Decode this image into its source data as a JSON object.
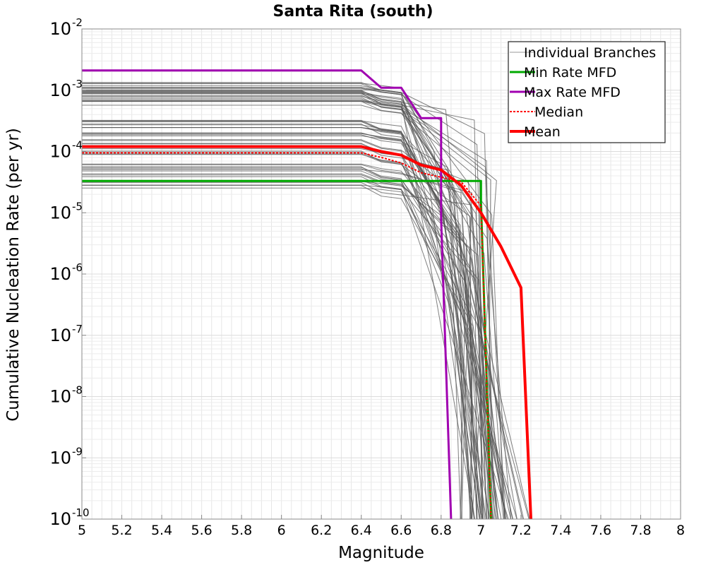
{
  "chart_data": {
    "type": "line",
    "title": "Santa Rita (south)",
    "xlabel": "Magnitude",
    "ylabel": "Cumulative Nucleation Rate (per yr)",
    "xlim": [
      5,
      8
    ],
    "ylim": [
      1e-10,
      0.01
    ],
    "yscale": "log",
    "grid": true,
    "legend_position": "top-right",
    "x_ticks": [
      "5",
      "5.2",
      "5.4",
      "5.6",
      "5.8",
      "6",
      "6.2",
      "6.4",
      "6.6",
      "6.8",
      "7",
      "7.2",
      "7.4",
      "7.6",
      "7.8",
      "8"
    ],
    "y_ticks": [
      {
        "base": "10",
        "exp": "-2",
        "value": 0.01
      },
      {
        "base": "10",
        "exp": "-3",
        "value": 0.001
      },
      {
        "base": "10",
        "exp": "-4",
        "value": 0.0001
      },
      {
        "base": "10",
        "exp": "-5",
        "value": 1e-05
      },
      {
        "base": "10",
        "exp": "-6",
        "value": 1e-06
      },
      {
        "base": "10",
        "exp": "-7",
        "value": 1e-07
      },
      {
        "base": "10",
        "exp": "-8",
        "value": 1e-08
      },
      {
        "base": "10",
        "exp": "-9",
        "value": 1e-09
      },
      {
        "base": "10",
        "exp": "-10",
        "value": 1e-10
      }
    ],
    "series": [
      {
        "name": "Min Rate MFD",
        "color": "#00aa00",
        "width": 3,
        "dash": "",
        "points": [
          [
            5.0,
            3.3e-05
          ],
          [
            7.0,
            3.3e-05
          ],
          [
            7.0,
            1.5e-05
          ],
          [
            7.05,
            1e-10
          ]
        ]
      },
      {
        "name": "Max Rate MFD",
        "color": "#a000b0",
        "width": 3,
        "dash": "",
        "points": [
          [
            5.0,
            0.0021
          ],
          [
            6.4,
            0.0021
          ],
          [
            6.5,
            0.0011
          ],
          [
            6.6,
            0.0011
          ],
          [
            6.7,
            0.00035
          ],
          [
            6.8,
            0.00035
          ],
          [
            6.8,
            8e-06
          ],
          [
            6.85,
            1e-10
          ]
        ]
      },
      {
        "name": "Median",
        "color": "#ff0000",
        "width": 2,
        "dash": "3,2",
        "points": [
          [
            5.0,
            9.5e-05
          ],
          [
            6.4,
            9.5e-05
          ],
          [
            6.5,
            8e-05
          ],
          [
            6.6,
            6.5e-05
          ],
          [
            6.7,
            4.5e-05
          ],
          [
            6.8,
            3.8e-05
          ],
          [
            6.9,
            3.2e-05
          ],
          [
            7.0,
            1.3e-05
          ],
          [
            7.05,
            1e-10
          ]
        ]
      },
      {
        "name": "Mean",
        "color": "#ff0000",
        "width": 4,
        "dash": "",
        "points": [
          [
            5.0,
            0.00012
          ],
          [
            6.4,
            0.00012
          ],
          [
            6.5,
            0.0001
          ],
          [
            6.6,
            8.7e-05
          ],
          [
            6.7,
            6e-05
          ],
          [
            6.8,
            5e-05
          ],
          [
            6.9,
            2.8e-05
          ],
          [
            7.0,
            1e-05
          ],
          [
            7.1,
            2.8e-06
          ],
          [
            7.2,
            6e-07
          ],
          [
            7.25,
            1e-10
          ]
        ]
      }
    ],
    "branch_series": {
      "name": "Individual Branches",
      "color": "#555555",
      "families": [
        {
          "count": 26,
          "plateau": [
            0.0005,
            0.0016
          ],
          "drops": [
            [
              6.7,
              7.1
            ],
            [
              6.8,
              7.2
            ]
          ],
          "floor_mag": [
            6.95,
            7.15
          ]
        },
        {
          "count": 40,
          "plateau": [
            2.5e-05,
            0.00033
          ],
          "drops": [
            [
              6.8,
              7.0
            ],
            [
              6.9,
              7.2
            ]
          ],
          "floor_mag": [
            6.85,
            7.25
          ]
        }
      ]
    }
  },
  "legend": {
    "items": [
      {
        "label": "Individual Branches",
        "color": "#999999",
        "width": 1,
        "dash": ""
      },
      {
        "label": "Min Rate MFD",
        "color": "#00aa00",
        "width": 3,
        "dash": ""
      },
      {
        "label": "Max Rate MFD",
        "color": "#a000b0",
        "width": 3,
        "dash": ""
      },
      {
        "label": "Median",
        "color": "#ff0000",
        "width": 2,
        "dash": "3,2"
      },
      {
        "label": "Mean",
        "color": "#ff0000",
        "width": 4,
        "dash": ""
      }
    ]
  }
}
